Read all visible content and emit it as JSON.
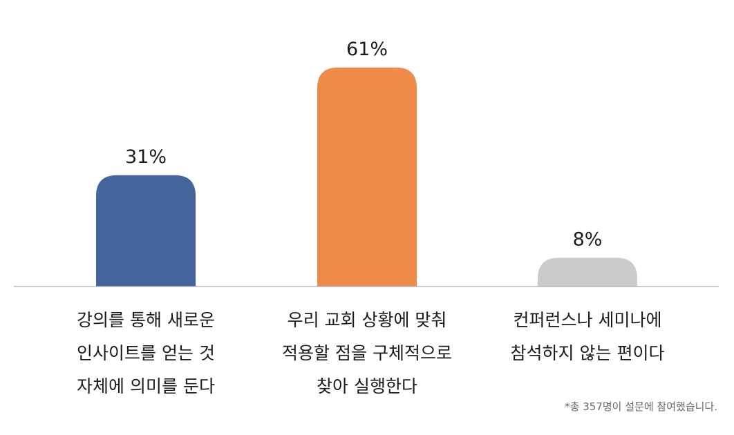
{
  "chart_data": {
    "type": "bar",
    "categories": [
      [
        "강의를 통해 새로운",
        "인사이트를 얻는 것",
        "자체에 의미를 둔다"
      ],
      [
        "우리 교회 상황에 맞춰",
        "적용할 점을 구체적으로",
        "찾아 실행한다"
      ],
      [
        "컨퍼런스나 세미나에",
        "참석하지 않는 편이다"
      ]
    ],
    "values": [
      31,
      61,
      8
    ],
    "value_labels": [
      "31%",
      "61%",
      "8%"
    ],
    "unit": "%",
    "ylim": [
      0,
      70
    ],
    "colors": [
      "#44659c",
      "#f08a48",
      "#cbcbcb"
    ],
    "axis_color": "#b8b8b8",
    "grid": false,
    "legend": "none"
  },
  "footnote": "*총 357명이 설문에 참여했습니다."
}
